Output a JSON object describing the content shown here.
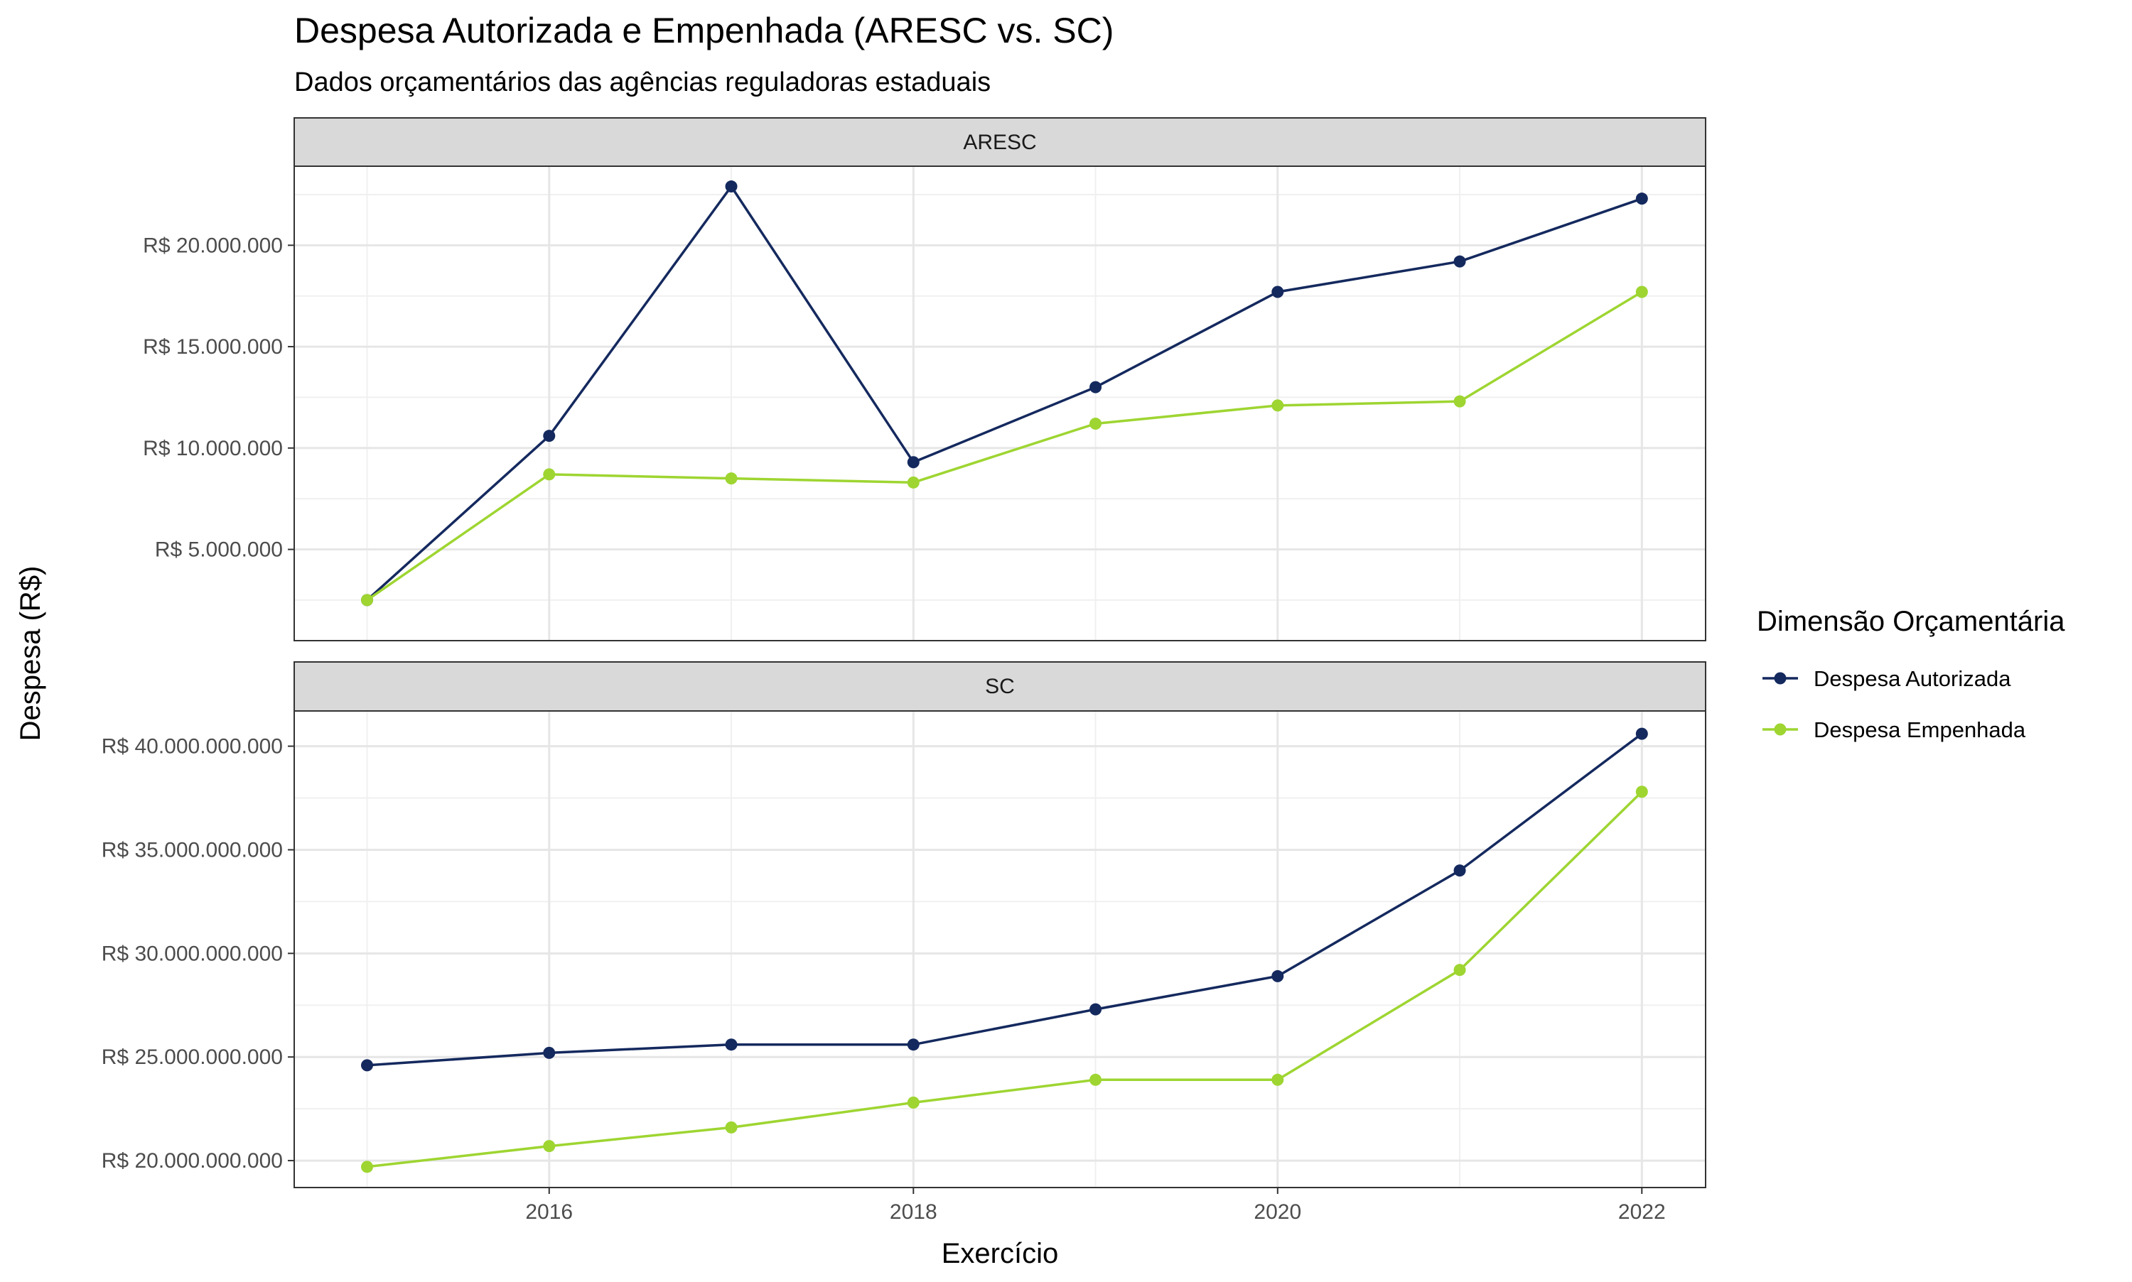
{
  "chart_data": {
    "type": "line",
    "title": "Despesa Autorizada e Empenhada (ARESC vs. SC)",
    "subtitle": "Dados orçamentários das agências reguladoras estaduais",
    "xlabel": "Exercício",
    "ylabel": "Despesa (R$)",
    "legend": {
      "title": "Dimensão Orçamentária",
      "position": "right"
    },
    "colors": {
      "Despesa Autorizada": "#14295e",
      "Despesa Empenhada": "#9ed531"
    },
    "x": [
      2015,
      2016,
      2017,
      2018,
      2019,
      2020,
      2021,
      2022
    ],
    "x_ticks": [
      2016,
      2018,
      2020,
      2022
    ],
    "x_tick_labels": [
      "2016",
      "2018",
      "2020",
      "2022"
    ],
    "xlim": [
      2014.6,
      2022.35
    ],
    "grid": true,
    "panels": [
      {
        "strip": "ARESC",
        "ylim": [
          500000,
          23900000
        ],
        "y_ticks": [
          5000000,
          10000000,
          15000000,
          20000000
        ],
        "y_tick_labels": [
          "R$ 5.000.000",
          "R$ 10.000.000",
          "R$ 15.000.000",
          "R$ 20.000.000"
        ],
        "series": [
          {
            "name": "Despesa Autorizada",
            "values": [
              2500000,
              10600000,
              22900000,
              9300000,
              13000000,
              17700000,
              19200000,
              22300000
            ]
          },
          {
            "name": "Despesa Empenhada",
            "values": [
              2500000,
              8700000,
              8500000,
              8300000,
              11200000,
              12100000,
              12300000,
              17700000
            ]
          }
        ]
      },
      {
        "strip": "SC",
        "ylim": [
          18700000000,
          41700000000
        ],
        "y_ticks": [
          20000000000,
          25000000000,
          30000000000,
          35000000000,
          40000000000
        ],
        "y_tick_labels": [
          "R$ 20.000.000.000",
          "R$ 25.000.000.000",
          "R$ 30.000.000.000",
          "R$ 35.000.000.000",
          "R$ 40.000.000.000"
        ],
        "series": [
          {
            "name": "Despesa Autorizada",
            "values": [
              24600000000,
              25200000000,
              25600000000,
              25600000000,
              27300000000,
              28900000000,
              34000000000,
              40600000000
            ]
          },
          {
            "name": "Despesa Empenhada",
            "values": [
              19700000000,
              20700000000,
              21600000000,
              22800000000,
              23900000000,
              23900000000,
              29200000000,
              37800000000
            ]
          }
        ]
      }
    ]
  }
}
